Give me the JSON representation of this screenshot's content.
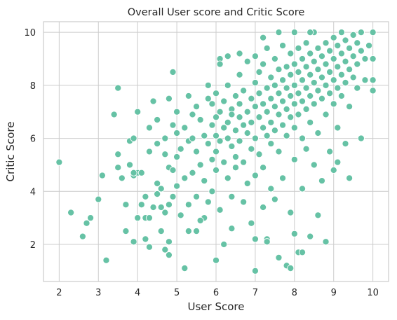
{
  "chart_data": {
    "type": "scatter",
    "title": "Overall User score and Critic Score",
    "xlabel": "User Score",
    "ylabel": "Critic Score",
    "xlim": [
      1.6,
      10.4
    ],
    "ylim": [
      0.6,
      10.4
    ],
    "xticks": [
      "2",
      "3",
      "4",
      "5",
      "6",
      "7",
      "8",
      "9",
      "10"
    ],
    "yticks": [
      "2",
      "4",
      "6",
      "8",
      "10"
    ],
    "grid": true,
    "marker_color": "#66c2a5",
    "marker_edge_color": "#ffffff",
    "points": [
      [
        2.0,
        5.1
      ],
      [
        2.3,
        3.2
      ],
      [
        2.6,
        2.3
      ],
      [
        2.7,
        2.8
      ],
      [
        2.8,
        3.0
      ],
      [
        3.0,
        3.7
      ],
      [
        3.1,
        4.6
      ],
      [
        3.2,
        1.4
      ],
      [
        3.4,
        6.9
      ],
      [
        3.5,
        7.9
      ],
      [
        3.5,
        4.9
      ],
      [
        3.5,
        5.4
      ],
      [
        3.6,
        4.5
      ],
      [
        3.7,
        3.5
      ],
      [
        3.7,
        2.5
      ],
      [
        3.8,
        5.9
      ],
      [
        3.8,
        5.0
      ],
      [
        3.9,
        4.6
      ],
      [
        3.9,
        6.0
      ],
      [
        3.9,
        2.1
      ],
      [
        4.0,
        4.7
      ],
      [
        4.0,
        3.0
      ],
      [
        4.0,
        7.0
      ],
      [
        4.1,
        3.5
      ],
      [
        4.1,
        4.7
      ],
      [
        4.2,
        3.0
      ],
      [
        4.2,
        2.2
      ],
      [
        4.2,
        3.8
      ],
      [
        4.3,
        5.5
      ],
      [
        4.3,
        6.4
      ],
      [
        4.3,
        3.0
      ],
      [
        4.3,
        1.9
      ],
      [
        4.4,
        7.4
      ],
      [
        4.4,
        3.4
      ],
      [
        4.5,
        4.3
      ],
      [
        4.5,
        5.8
      ],
      [
        4.5,
        6.7
      ],
      [
        4.6,
        3.4
      ],
      [
        4.6,
        2.5
      ],
      [
        4.6,
        4.1
      ],
      [
        4.7,
        6.0
      ],
      [
        4.7,
        3.2
      ],
      [
        4.7,
        5.4
      ],
      [
        4.7,
        1.8
      ],
      [
        4.8,
        7.5
      ],
      [
        4.8,
        4.9
      ],
      [
        4.8,
        3.5
      ],
      [
        4.8,
        2.1
      ],
      [
        4.8,
        1.6
      ],
      [
        4.9,
        8.5
      ],
      [
        4.9,
        6.5
      ],
      [
        4.9,
        4.8
      ],
      [
        4.9,
        3.8
      ],
      [
        5.0,
        6.2
      ],
      [
        5.0,
        7.0
      ],
      [
        5.0,
        5.3
      ],
      [
        5.0,
        4.2
      ],
      [
        5.1,
        5.6
      ],
      [
        5.1,
        3.1
      ],
      [
        5.2,
        6.4
      ],
      [
        5.2,
        4.5
      ],
      [
        5.2,
        1.1
      ],
      [
        5.3,
        7.6
      ],
      [
        5.3,
        5.9
      ],
      [
        5.3,
        3.5
      ],
      [
        5.3,
        2.5
      ],
      [
        5.4,
        6.9
      ],
      [
        5.4,
        6.0
      ],
      [
        5.4,
        4.7
      ],
      [
        5.5,
        5.5
      ],
      [
        5.5,
        7.2
      ],
      [
        5.5,
        3.8
      ],
      [
        5.5,
        2.5
      ],
      [
        5.6,
        6.7
      ],
      [
        5.6,
        5.0
      ],
      [
        5.7,
        6.1
      ],
      [
        5.7,
        4.4
      ],
      [
        5.7,
        3.0
      ],
      [
        5.8,
        7.5
      ],
      [
        5.8,
        5.8
      ],
      [
        5.8,
        3.6
      ],
      [
        5.9,
        6.5
      ],
      [
        5.9,
        5.2
      ],
      [
        5.9,
        7.3
      ],
      [
        5.9,
        4.0
      ],
      [
        6.0,
        6.8
      ],
      [
        6.0,
        6.1
      ],
      [
        6.0,
        5.5
      ],
      [
        6.0,
        4.8
      ],
      [
        6.0,
        7.7
      ],
      [
        6.0,
        1.4
      ],
      [
        6.1,
        7.0
      ],
      [
        6.1,
        5.9
      ],
      [
        6.1,
        3.3
      ],
      [
        6.1,
        9.0
      ],
      [
        6.2,
        6.4
      ],
      [
        6.2,
        5.1
      ],
      [
        6.2,
        7.4
      ],
      [
        6.2,
        2.0
      ],
      [
        6.3,
        6.6
      ],
      [
        6.3,
        6.0
      ],
      [
        6.3,
        4.5
      ],
      [
        6.3,
        8.0
      ],
      [
        6.3,
        9.1
      ],
      [
        6.4,
        7.1
      ],
      [
        6.4,
        5.7
      ],
      [
        6.4,
        6.9
      ],
      [
        6.4,
        3.8
      ],
      [
        6.5,
        6.3
      ],
      [
        6.5,
        7.6
      ],
      [
        6.5,
        5.3
      ],
      [
        6.5,
        4.9
      ],
      [
        6.6,
        6.8
      ],
      [
        6.6,
        7.3
      ],
      [
        6.6,
        5.9
      ],
      [
        6.6,
        8.4
      ],
      [
        6.7,
        6.5
      ],
      [
        6.7,
        7.8
      ],
      [
        6.7,
        5.1
      ],
      [
        6.7,
        3.6
      ],
      [
        6.8,
        7.0
      ],
      [
        6.8,
        6.2
      ],
      [
        6.8,
        8.9
      ],
      [
        6.8,
        4.3
      ],
      [
        6.9,
        7.5
      ],
      [
        6.9,
        6.6
      ],
      [
        6.9,
        5.6
      ],
      [
        6.9,
        2.8
      ],
      [
        7.0,
        7.2
      ],
      [
        7.0,
        8.1
      ],
      [
        7.0,
        6.0
      ],
      [
        7.0,
        4.6
      ],
      [
        7.0,
        9.1
      ],
      [
        7.0,
        1.0
      ],
      [
        7.0,
        2.2
      ],
      [
        7.1,
        7.7
      ],
      [
        7.1,
        6.8
      ],
      [
        7.1,
        5.4
      ],
      [
        7.1,
        8.5
      ],
      [
        7.2,
        7.3
      ],
      [
        7.2,
        6.4
      ],
      [
        7.2,
        8.8
      ],
      [
        7.2,
        4.9
      ],
      [
        7.2,
        3.4
      ],
      [
        7.3,
        7.9
      ],
      [
        7.3,
        7.0
      ],
      [
        7.3,
        6.1
      ],
      [
        7.3,
        9.4
      ],
      [
        7.3,
        2.2
      ],
      [
        7.4,
        8.3
      ],
      [
        7.4,
        7.5
      ],
      [
        7.4,
        6.6
      ],
      [
        7.4,
        5.8
      ],
      [
        7.4,
        4.1
      ],
      [
        7.5,
        8.0
      ],
      [
        7.5,
        7.2
      ],
      [
        7.5,
        6.3
      ],
      [
        7.5,
        9.0
      ],
      [
        7.5,
        3.7
      ],
      [
        7.6,
        8.6
      ],
      [
        7.6,
        7.7
      ],
      [
        7.6,
        6.9
      ],
      [
        7.6,
        5.5
      ],
      [
        7.6,
        1.5
      ],
      [
        7.6,
        10.0
      ],
      [
        7.7,
        8.2
      ],
      [
        7.7,
        7.4
      ],
      [
        7.7,
        6.5
      ],
      [
        7.7,
        9.5
      ],
      [
        7.7,
        4.5
      ],
      [
        7.8,
        7.9
      ],
      [
        7.8,
        8.7
      ],
      [
        7.8,
        7.1
      ],
      [
        7.8,
        6.1
      ],
      [
        7.8,
        1.2
      ],
      [
        7.9,
        8.4
      ],
      [
        7.9,
        7.6
      ],
      [
        7.9,
        6.8
      ],
      [
        7.9,
        9.2
      ],
      [
        7.9,
        3.2
      ],
      [
        8.0,
        8.0
      ],
      [
        8.0,
        8.8
      ],
      [
        8.0,
        7.3
      ],
      [
        8.0,
        6.4
      ],
      [
        8.0,
        5.2
      ],
      [
        8.0,
        10.0
      ],
      [
        8.0,
        2.4
      ],
      [
        8.1,
        8.5
      ],
      [
        8.1,
        7.7
      ],
      [
        8.1,
        9.4
      ],
      [
        8.1,
        6.9
      ],
      [
        8.1,
        1.7
      ],
      [
        8.2,
        8.2
      ],
      [
        8.2,
        7.4
      ],
      [
        8.2,
        9.0
      ],
      [
        8.2,
        6.0
      ],
      [
        8.2,
        4.1
      ],
      [
        8.3,
        8.7
      ],
      [
        8.3,
        7.9
      ],
      [
        8.3,
        7.1
      ],
      [
        8.3,
        9.6
      ],
      [
        8.3,
        5.6
      ],
      [
        8.4,
        8.4
      ],
      [
        8.4,
        7.6
      ],
      [
        8.4,
        9.2
      ],
      [
        8.4,
        6.6
      ],
      [
        8.4,
        2.3
      ],
      [
        8.5,
        8.9
      ],
      [
        8.5,
        8.1
      ],
      [
        8.5,
        7.3
      ],
      [
        8.5,
        10.0
      ],
      [
        8.5,
        5.0
      ],
      [
        8.6,
        8.6
      ],
      [
        8.6,
        7.8
      ],
      [
        8.6,
        9.4
      ],
      [
        8.6,
        6.2
      ],
      [
        8.7,
        8.3
      ],
      [
        8.7,
        9.1
      ],
      [
        8.7,
        7.5
      ],
      [
        8.7,
        4.4
      ],
      [
        8.8,
        8.8
      ],
      [
        8.8,
        8.0
      ],
      [
        8.8,
        9.6
      ],
      [
        8.8,
        6.9
      ],
      [
        8.8,
        2.1
      ],
      [
        8.9,
        8.5
      ],
      [
        8.9,
        9.3
      ],
      [
        8.9,
        7.7
      ],
      [
        8.9,
        5.5
      ],
      [
        9.0,
        9.0
      ],
      [
        9.0,
        8.2
      ],
      [
        9.0,
        9.8
      ],
      [
        9.0,
        7.3
      ],
      [
        9.0,
        4.8
      ],
      [
        9.1,
        8.7
      ],
      [
        9.1,
        9.5
      ],
      [
        9.1,
        7.9
      ],
      [
        9.1,
        6.4
      ],
      [
        9.2,
        9.2
      ],
      [
        9.2,
        8.4
      ],
      [
        9.2,
        10.0
      ],
      [
        9.2,
        7.6
      ],
      [
        9.3,
        8.9
      ],
      [
        9.3,
        9.7
      ],
      [
        9.3,
        8.1
      ],
      [
        9.3,
        5.8
      ],
      [
        9.4,
        9.4
      ],
      [
        9.4,
        8.6
      ],
      [
        9.4,
        7.2
      ],
      [
        9.5,
        9.1
      ],
      [
        9.5,
        9.9
      ],
      [
        9.5,
        8.3
      ],
      [
        9.6,
        9.6
      ],
      [
        9.6,
        8.8
      ],
      [
        9.6,
        7.9
      ],
      [
        9.7,
        9.3
      ],
      [
        9.7,
        10.0
      ],
      [
        9.8,
        9.0
      ],
      [
        9.8,
        8.2
      ],
      [
        9.9,
        9.5
      ],
      [
        10.0,
        10.0
      ],
      [
        10.0,
        9.0
      ],
      [
        10.0,
        8.2
      ],
      [
        10.0,
        7.8
      ],
      [
        9.7,
        6.0
      ],
      [
        9.4,
        4.5
      ],
      [
        8.2,
        1.7
      ],
      [
        7.9,
        1.1
      ],
      [
        6.6,
        9.2
      ],
      [
        6.1,
        8.8
      ],
      [
        5.8,
        8.0
      ],
      [
        7.2,
        9.8
      ],
      [
        8.4,
        10.0
      ],
      [
        5.6,
        2.9
      ],
      [
        6.4,
        2.6
      ],
      [
        7.3,
        2.1
      ],
      [
        8.6,
        3.1
      ],
      [
        9.1,
        5.1
      ],
      [
        4.5,
        3.9
      ],
      [
        3.9,
        4.7
      ]
    ]
  }
}
